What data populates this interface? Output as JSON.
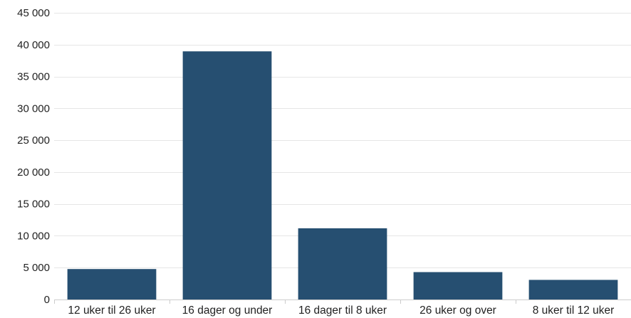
{
  "chart_data": {
    "type": "bar",
    "categories": [
      "12 uker til 26 uker",
      "16 dager og under",
      "16 dager til 8 uker",
      "26 uker og over",
      "8 uker til 12 uker"
    ],
    "values": [
      4780,
      38950,
      11180,
      4300,
      3080
    ],
    "title": "",
    "xlabel": "",
    "ylabel": "",
    "ylim": [
      0,
      45000
    ],
    "yticks": [
      0,
      5000,
      10000,
      15000,
      20000,
      25000,
      30000,
      35000,
      40000,
      45000
    ],
    "ytick_labels": [
      "0",
      "5 000",
      "10 000",
      "15 000",
      "20 000",
      "25 000",
      "30 000",
      "35 000",
      "40 000",
      "45 000"
    ],
    "grid": true,
    "legend": "none",
    "bar_color": "#264f71"
  }
}
